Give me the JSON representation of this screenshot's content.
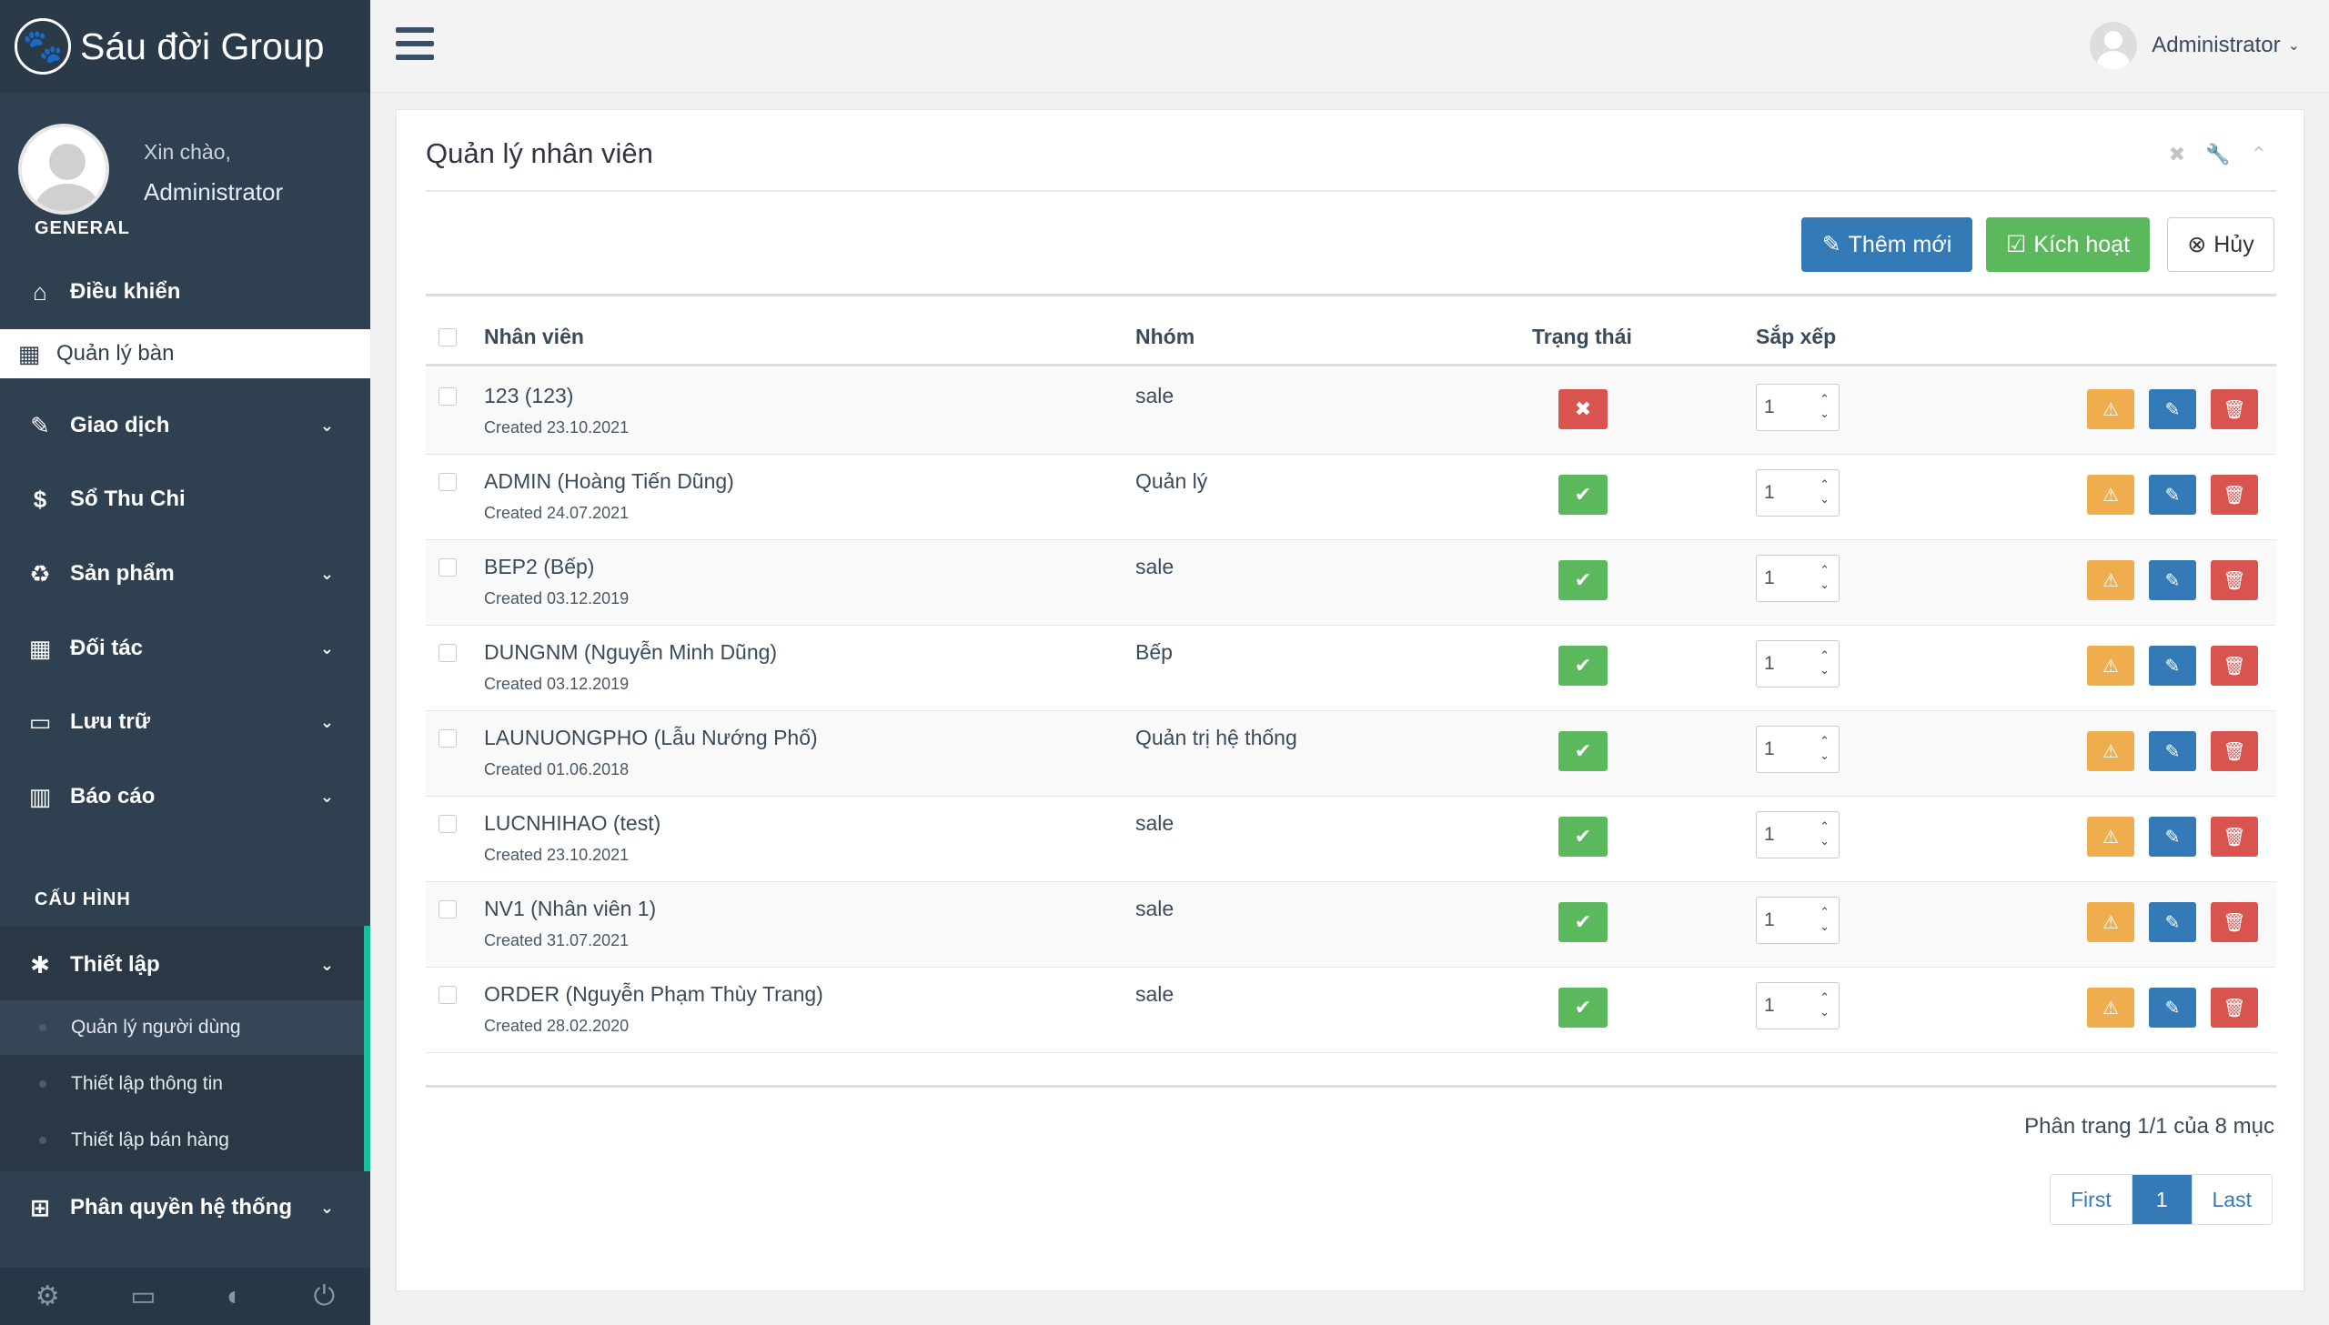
{
  "brand": {
    "name": "Sáu đời Group",
    "logo_icon": "paw-icon"
  },
  "profile": {
    "greeting": "Xin chào,",
    "name": "Administrator",
    "section": "GENERAL"
  },
  "nav": [
    {
      "label": "Điều khiển",
      "icon": "home-icon"
    },
    {
      "label": "Quản lý bàn",
      "icon": "table-icon",
      "active": true
    },
    {
      "label": "Giao dịch",
      "icon": "edit-icon",
      "chevron": "⌄"
    },
    {
      "label": "Sổ Thu Chi",
      "icon": "dollar-icon"
    },
    {
      "label": "Sản phẩm",
      "icon": "recycle-icon",
      "chevron": "⌄"
    },
    {
      "label": "Đối tác",
      "icon": "grid-icon",
      "chevron": "⌄"
    },
    {
      "label": "Lưu trữ",
      "icon": "monitor-icon",
      "chevron": "⌄"
    },
    {
      "label": "Báo cáo",
      "icon": "bar-chart-icon",
      "chevron": "⌄"
    }
  ],
  "config": {
    "section": "CẤU HÌNH",
    "setup": {
      "label": "Thiết lập",
      "icon": "bug-icon"
    },
    "sub_items": [
      {
        "label": "Quản lý người dùng",
        "current": true
      },
      {
        "label": "Thiết lập thông tin"
      },
      {
        "label": "Thiết lập bán hàng"
      }
    ],
    "permissions": {
      "label": "Phân quyền hệ thống",
      "icon": "windows-icon"
    }
  },
  "footer_icons": [
    "gear-icon",
    "desktop-icon",
    "eye-slash-icon",
    "power-icon"
  ],
  "topbar": {
    "user": "Administrator"
  },
  "panel": {
    "title": "Quản lý nhân viên",
    "buttons": {
      "add": "Thêm mới",
      "activate": "Kích hoạt",
      "cancel": "Hủy"
    },
    "columns": {
      "employee": "Nhân viên",
      "group": "Nhóm",
      "status": "Trạng thái",
      "sort": "Sắp xếp"
    },
    "rows": [
      {
        "name": "123 (123)",
        "created": "Created 23.10.2021",
        "group": "sale",
        "active": false,
        "sort": "1"
      },
      {
        "name": "ADMIN (Hoàng Tiến Dũng)",
        "created": "Created 24.07.2021",
        "group": "Quản lý",
        "active": true,
        "sort": "1"
      },
      {
        "name": "BEP2 (Bếp)",
        "created": "Created 03.12.2019",
        "group": "sale",
        "active": true,
        "sort": "1"
      },
      {
        "name": "DUNGNM (Nguyễn Minh Dũng)",
        "created": "Created 03.12.2019",
        "group": "Bếp",
        "active": true,
        "sort": "1"
      },
      {
        "name": "LAUNUONGPHO (Lẫu Nướng Phố)",
        "created": "Created 01.06.2018",
        "group": "Quản trị hệ thống",
        "active": true,
        "sort": "1"
      },
      {
        "name": "LUCNHIHAO (test)",
        "created": "Created 23.10.2021",
        "group": "sale",
        "active": true,
        "sort": "1"
      },
      {
        "name": "NV1 (Nhân viên 1)",
        "created": "Created 31.07.2021",
        "group": "sale",
        "active": true,
        "sort": "1"
      },
      {
        "name": "ORDER (Nguyễn Phạm Thùy Trang)",
        "created": "Created 28.02.2020",
        "group": "sale",
        "active": true,
        "sort": "1"
      }
    ],
    "pager": {
      "info": "Phân trang 1/1 của 8 mục",
      "first": "First",
      "current": "1",
      "last": "Last"
    }
  },
  "colors": {
    "sidebar": "#2f4050",
    "primary": "#337ab7",
    "success": "#5cb85c",
    "danger": "#d9534f",
    "warning": "#f0ad4e",
    "accent": "#1abc9c"
  }
}
